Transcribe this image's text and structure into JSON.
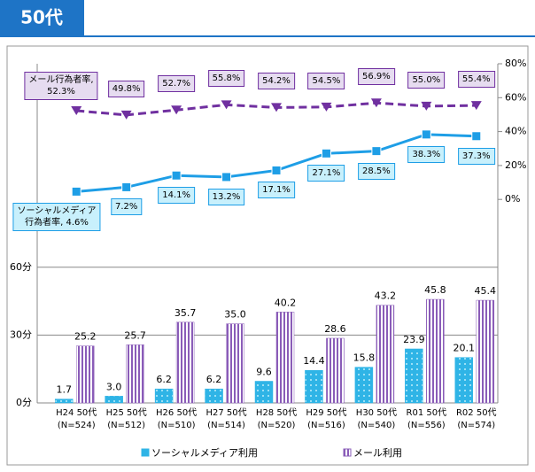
{
  "header": {
    "title": "50代"
  },
  "chart_data": {
    "type": "combo",
    "categories": [
      "H24 50代",
      "H25 50代",
      "H26 50代",
      "H27 50代",
      "H28 50代",
      "H29 50代",
      "H30 50代",
      "R01 50代",
      "R02 50代"
    ],
    "sample_sizes": [
      "(N=524)",
      "(N=512)",
      "(N=510)",
      "(N=514)",
      "(N=520)",
      "(N=516)",
      "(N=540)",
      "(N=556)",
      "(N=574)"
    ],
    "ylim": [
      0,
      150
    ],
    "yticks": [
      {
        "value": 0,
        "label": "0分"
      },
      {
        "value": 30,
        "label": "30分"
      },
      {
        "value": 60,
        "label": "60分"
      }
    ],
    "y2lim": [
      -120,
      80
    ],
    "y2ticks": [
      {
        "value": 0,
        "label": "0%"
      },
      {
        "value": 20,
        "label": "20%"
      },
      {
        "value": 40,
        "label": "40%"
      },
      {
        "value": 60,
        "label": "60%"
      },
      {
        "value": 80,
        "label": "80%"
      }
    ],
    "grid": true,
    "series": [
      {
        "name": "ソーシャルメディア利用",
        "type": "bar",
        "color": "#2fb4e6",
        "values": [
          1.7,
          3.0,
          6.2,
          6.2,
          9.6,
          14.4,
          15.8,
          23.9,
          20.1
        ],
        "value_labels": [
          "1.7",
          "3.0",
          "6.2",
          "6.2",
          "9.6",
          "14.4",
          "15.8",
          "23.9",
          "20.1"
        ]
      },
      {
        "name": "メール利用",
        "type": "bar",
        "color": "#8a5cb8",
        "values": [
          25.2,
          25.7,
          35.7,
          35.0,
          40.2,
          28.6,
          43.2,
          45.8,
          45.4
        ],
        "value_labels": [
          "25.2",
          "25.7",
          "35.7",
          "35.0",
          "40.2",
          "28.6",
          "43.2",
          "45.8",
          "45.4"
        ]
      },
      {
        "type": "line",
        "axis": "y2",
        "color": "#1e9ee6",
        "marker": "square",
        "box_fill": "#c8f0fc",
        "values": [
          4.6,
          7.2,
          14.1,
          13.2,
          17.1,
          27.1,
          28.5,
          38.3,
          37.3
        ],
        "value_labels": [
          "ソーシャルメディア\n行為者率, 4.6%",
          "7.2%",
          "14.1%",
          "13.2%",
          "17.1%",
          "27.1%",
          "28.5%",
          "38.3%",
          "37.3%"
        ]
      },
      {
        "type": "line",
        "axis": "y2",
        "color": "#7030a0",
        "marker": "triangle",
        "dashed": true,
        "box_fill": "#e6dcf0",
        "values": [
          52.3,
          49.8,
          52.7,
          55.8,
          54.2,
          54.5,
          56.9,
          55.0,
          55.4
        ],
        "value_labels": [
          "メール行為者率,\n52.3%",
          "49.8%",
          "52.7%",
          "55.8%",
          "54.2%",
          "54.5%",
          "56.9%",
          "55.0%",
          "55.4%"
        ]
      }
    ]
  }
}
